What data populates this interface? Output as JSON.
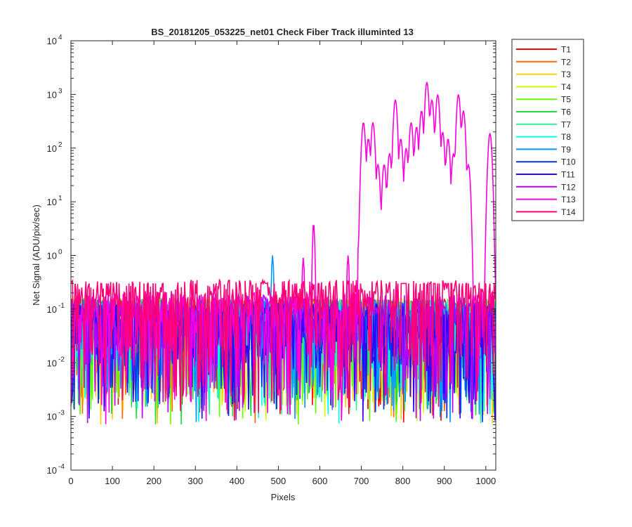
{
  "chart_data": {
    "type": "line",
    "title": "BS_20181205_053225_net01   Check Fiber     Track illuminted 13",
    "xlabel": "Pixels",
    "ylabel": "Net Signal (ADU/pix/sec)",
    "xlim": [
      0,
      1024
    ],
    "ylim": [
      0.0001,
      10000
    ],
    "yscale": "log",
    "grid": false,
    "legend_position": "outside-top-right",
    "x_ticks": [
      {
        "value": 0,
        "label": "0"
      },
      {
        "value": 100,
        "label": "100"
      },
      {
        "value": 200,
        "label": "200"
      },
      {
        "value": 300,
        "label": "300"
      },
      {
        "value": 400,
        "label": "400"
      },
      {
        "value": 500,
        "label": "500"
      },
      {
        "value": 600,
        "label": "600"
      },
      {
        "value": 700,
        "label": "700"
      },
      {
        "value": 800,
        "label": "800"
      },
      {
        "value": 900,
        "label": "900"
      },
      {
        "value": 1000,
        "label": "1000"
      }
    ],
    "y_ticks": [
      {
        "value": 0.0001,
        "base": "10",
        "exp": "-4"
      },
      {
        "value": 0.001,
        "base": "10",
        "exp": "-3"
      },
      {
        "value": 0.01,
        "base": "10",
        "exp": "-2"
      },
      {
        "value": 0.1,
        "base": "10",
        "exp": "-1"
      },
      {
        "value": 1,
        "base": "10",
        "exp": "0"
      },
      {
        "value": 10,
        "base": "10",
        "exp": "1"
      },
      {
        "value": 100,
        "base": "10",
        "exp": "2"
      },
      {
        "value": 1000,
        "base": "10",
        "exp": "3"
      },
      {
        "value": 10000,
        "base": "10",
        "exp": "4"
      }
    ],
    "series": [
      {
        "name": "T1",
        "color": "#ff0000",
        "baseline": 0.06
      },
      {
        "name": "T2",
        "color": "#ff6a00",
        "baseline": 0.06
      },
      {
        "name": "T3",
        "color": "#ffcc00",
        "baseline": 0.06
      },
      {
        "name": "T4",
        "color": "#ccff00",
        "baseline": 0.06
      },
      {
        "name": "T5",
        "color": "#66ff00",
        "baseline": 0.06
      },
      {
        "name": "T6",
        "color": "#22dd44",
        "baseline": 0.06
      },
      {
        "name": "T7",
        "color": "#33ee99",
        "baseline": 0.06
      },
      {
        "name": "T8",
        "color": "#00ffee",
        "baseline": 0.06
      },
      {
        "name": "T9",
        "color": "#0099ff",
        "baseline": 0.06,
        "peaks": [
          {
            "x": 486,
            "y": 1.0
          }
        ]
      },
      {
        "name": "T10",
        "color": "#0033ee",
        "baseline": 0.05
      },
      {
        "name": "T11",
        "color": "#3300ff",
        "baseline": 0.05
      },
      {
        "name": "T12",
        "color": "#bb00ff",
        "baseline": 0.07
      },
      {
        "name": "T13",
        "color": "#ff00dd",
        "baseline": 0.08,
        "peaks": [
          {
            "x": 560,
            "y": 0.9
          },
          {
            "x": 585,
            "y": 4
          },
          {
            "x": 668,
            "y": 1.0
          },
          {
            "x": 705,
            "y": 300
          },
          {
            "x": 717,
            "y": 150
          },
          {
            "x": 728,
            "y": 300
          },
          {
            "x": 740,
            "y": 50
          },
          {
            "x": 755,
            "y": 50
          },
          {
            "x": 768,
            "y": 80
          },
          {
            "x": 782,
            "y": 800
          },
          {
            "x": 795,
            "y": 150
          },
          {
            "x": 808,
            "y": 100
          },
          {
            "x": 820,
            "y": 300
          },
          {
            "x": 833,
            "y": 250
          },
          {
            "x": 845,
            "y": 500
          },
          {
            "x": 858,
            "y": 1700
          },
          {
            "x": 870,
            "y": 800
          },
          {
            "x": 884,
            "y": 1000
          },
          {
            "x": 896,
            "y": 200
          },
          {
            "x": 909,
            "y": 150
          },
          {
            "x": 922,
            "y": 80
          },
          {
            "x": 934,
            "y": 1000
          },
          {
            "x": 946,
            "y": 500
          },
          {
            "x": 958,
            "y": 50
          },
          {
            "x": 1010,
            "y": 190
          }
        ]
      },
      {
        "name": "T14",
        "color": "#ff0077",
        "baseline": 0.15
      }
    ]
  }
}
